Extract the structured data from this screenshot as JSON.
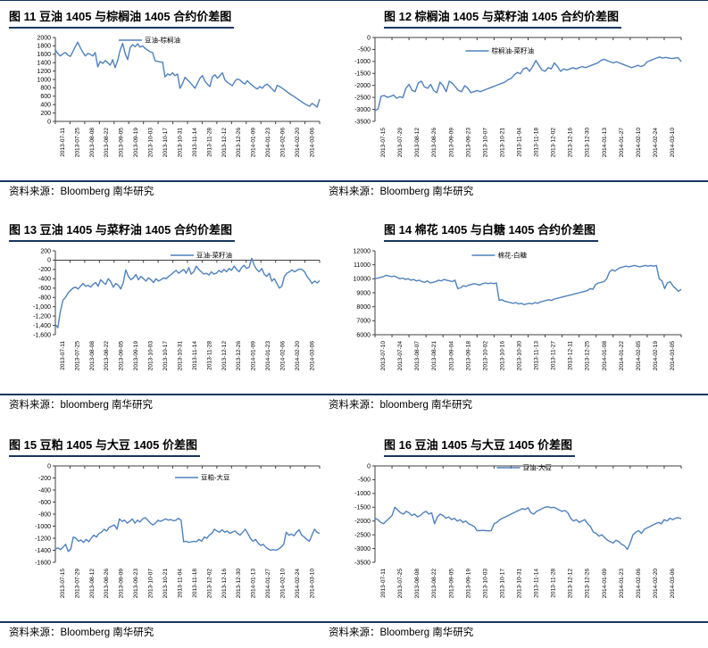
{
  "colors": {
    "line": "#4f81bd",
    "rule": "#17375e",
    "axis": "#404040",
    "text": "#000000"
  },
  "figures": [
    {
      "title": "图 11 豆油 1405 与棕榈油 1405 合约价差图",
      "source": "资料来源：Bloomberg 南华研究"
    },
    {
      "title": "图 12 棕榈油 1405 与菜籽油 1405 合约价差图",
      "source": "资料来源：Bloomberg 南华研究"
    },
    {
      "title": "图 13 豆油 1405 与菜籽油 1405 合约价差图",
      "source": "资料来源：bloomberg 南华研究"
    },
    {
      "title": "图 14 棉花 1405 与白糖 1405 合约价差图",
      "source": "资料来源：bloomberg 南华研究"
    },
    {
      "title": "图 15 豆粕 1405 与大豆 1405 价差图",
      "source": "资料来源：Bloomberg 南华研究"
    },
    {
      "title": "图 16 豆油 1405 与大豆 1405 价差图",
      "source": "资料来源：Bloomberg 南华研究"
    }
  ],
  "chart_data": [
    {
      "type": "line",
      "title": "图 11 豆油 1405 与棕榈油 1405 合约价差图",
      "legend": "豆油-棕榈油",
      "legend_dx": -45,
      "legend_dy": 3,
      "ylim": [
        0,
        2000
      ],
      "yticks": [
        "2000",
        "1800",
        "1600",
        "1400",
        "1200",
        "1000",
        "800",
        "600",
        "400",
        "200",
        "0"
      ],
      "axis_cross": 0,
      "grid": false,
      "categories": [
        "2013-07-11",
        "2013-07-25",
        "2013-08-08",
        "2013-08-22",
        "2013-09-05",
        "2013-09-19",
        "2013-10-03",
        "2013-10-17",
        "2013-10-31",
        "2013-11-14",
        "2013-11-28",
        "2013-12-12",
        "2013-12-26",
        "2014-01-09",
        "2014-01-23",
        "2014-02-06",
        "2014-02-20",
        "2014-03-06"
      ],
      "values": [
        1700,
        1620,
        1560,
        1610,
        1640,
        1580,
        1550,
        1660,
        1780,
        1890,
        1760,
        1650,
        1560,
        1620,
        1600,
        1560,
        1640,
        1300,
        1430,
        1380,
        1450,
        1400,
        1340,
        1470,
        1280,
        1450,
        1700,
        1860,
        1620,
        1470,
        1760,
        1830,
        1780,
        1850,
        1770,
        1800,
        1740,
        1700,
        1660,
        1640,
        1450,
        1430,
        1420,
        1410,
        1060,
        1130,
        1100,
        1160,
        1090,
        1130,
        790,
        900,
        1050,
        990,
        930,
        860,
        790,
        910,
        1030,
        1090,
        960,
        890,
        830,
        1060,
        1110,
        1030,
        1090,
        1160,
        990,
        930,
        890,
        850,
        960,
        1010,
        990,
        930,
        890,
        970,
        910,
        860,
        810,
        770,
        830,
        790,
        860,
        890,
        830,
        770,
        710,
        860,
        830,
        790,
        750,
        700,
        660,
        620,
        580,
        540,
        500,
        460,
        420,
        390,
        360,
        430,
        390,
        340,
        530
      ]
    },
    {
      "type": "line",
      "title": "图 12 棕榈油 1405 与菜籽油 1405 合约价差图",
      "legend": "棕榈油-菜籽油",
      "legend_dx": -38,
      "legend_dy": 15,
      "ylim": [
        -3500,
        0
      ],
      "yticks": [
        "0",
        "-500",
        "-1000",
        "-1500",
        "-2000",
        "-2500",
        "-3000",
        "-3500"
      ],
      "axis_cross": 0,
      "grid": false,
      "categories": [
        "2013-07-15",
        "2013-07-29",
        "2013-08-12",
        "2013-08-26",
        "2013-09-09",
        "2013-09-23",
        "2013-10-07",
        "2013-10-21",
        "2013-11-04",
        "2013-11-18",
        "2013-12-02",
        "2013-12-16",
        "2013-12-30",
        "2014-01-13",
        "2014-01-27",
        "2014-02-10",
        "2014-02-24",
        "2014-03-10"
      ],
      "values": [
        -3050,
        -2980,
        -2450,
        -2420,
        -2500,
        -2460,
        -2400,
        -2540,
        -2470,
        -2510,
        -2120,
        -1960,
        -2210,
        -2260,
        -1900,
        -1820,
        -2060,
        -2120,
        -1960,
        -2210,
        -2300,
        -1860,
        -2010,
        -2260,
        -1820,
        -1910,
        -2060,
        -2210,
        -2260,
        -2010,
        -2110,
        -2300,
        -2260,
        -2210,
        -2260,
        -2210,
        -2160,
        -2110,
        -2060,
        -2010,
        -1960,
        -1910,
        -1860,
        -1760,
        -1710,
        -1560,
        -1460,
        -1510,
        -1310,
        -1260,
        -1410,
        -1210,
        -960,
        -1160,
        -1360,
        -1410,
        -1260,
        -1310,
        -1060,
        -1210,
        -1410,
        -1310,
        -1360,
        -1310,
        -1260,
        -1310,
        -1260,
        -1210,
        -1260,
        -1210,
        -1160,
        -1110,
        -1060,
        -960,
        -910,
        -960,
        -1010,
        -1060,
        -1010,
        -1060,
        -1110,
        -1160,
        -1210,
        -1260,
        -1210,
        -1160,
        -1210,
        -1160,
        -1010,
        -960,
        -910,
        -860,
        -810,
        -860,
        -830,
        -860,
        -880,
        -860,
        -840,
        -1010
      ]
    },
    {
      "type": "line",
      "title": "图 13 豆油 1405 与菜籽油 1405 合约价差图",
      "legend": "豆油-菜籽油",
      "legend_dx": 13,
      "legend_dy": 5,
      "ylim": [
        -1600,
        200
      ],
      "yticks": [
        "200",
        "0",
        "-200",
        "-400",
        "-600",
        "-800",
        "-1,000",
        "-1,200",
        "-1,400",
        "-1,600"
      ],
      "axis_cross": 0,
      "grid": false,
      "categories": [
        "2013-07-11",
        "2013-07-25",
        "2013-08-08",
        "2013-08-22",
        "2013-09-05",
        "2013-09-19",
        "2013-10-03",
        "2013-10-17",
        "2013-10-31",
        "2013-11-14",
        "2013-11-28",
        "2013-12-12",
        "2013-12-26",
        "2014-01-09",
        "2014-01-23",
        "2014-02-06",
        "2014-02-20",
        "2014-03-06"
      ],
      "values": [
        -1380,
        -1450,
        -1100,
        -860,
        -800,
        -710,
        -650,
        -600,
        -580,
        -620,
        -560,
        -500,
        -560,
        -540,
        -580,
        -520,
        -480,
        -560,
        -420,
        -480,
        -520,
        -400,
        -460,
        -580,
        -500,
        -540,
        -620,
        -480,
        -210,
        -350,
        -420,
        -380,
        -310,
        -420,
        -350,
        -400,
        -450,
        -380,
        -420,
        -480,
        -400,
        -450,
        -420,
        -380,
        -400,
        -350,
        -310,
        -260,
        -220,
        -280,
        -240,
        -200,
        -280,
        -160,
        -300,
        -250,
        -130,
        -200,
        -250,
        -300,
        -280,
        -320,
        -250,
        -300,
        -280,
        -220,
        -260,
        -200,
        -250,
        -180,
        -220,
        -130,
        -200,
        -250,
        -160,
        -110,
        -180,
        -150,
        40,
        -110,
        -200,
        -250,
        -180,
        -300,
        -350,
        -280,
        -450,
        -400,
        -500,
        -600,
        -560,
        -350,
        -280,
        -250,
        -210,
        -250,
        -220,
        -190,
        -200,
        -250,
        -350,
        -420,
        -500,
        -450,
        -490,
        -440
      ]
    },
    {
      "type": "line",
      "title": "图 14 棉花 1405 与白糖 1405 合约价差图",
      "legend": "棉花-白糖",
      "legend_dx": -31,
      "legend_dy": 5,
      "ylim": [
        6000,
        12000
      ],
      "yticks": [
        "12000",
        "11000",
        "10000",
        "9000",
        "8000",
        "7000",
        "6000"
      ],
      "axis_cross": 6000,
      "grid": false,
      "categories": [
        "2013-07-10",
        "2013-07-24",
        "2013-08-07",
        "2013-08-21",
        "2013-09-04",
        "2013-09-18",
        "2013-10-02",
        "2013-10-16",
        "2013-10-30",
        "2013-11-13",
        "2013-11-27",
        "2013-12-11",
        "2013-12-25",
        "2014-01-08",
        "2014-01-22",
        "2014-02-05",
        "2014-02-19",
        "2014-03-05"
      ],
      "values": [
        10000,
        10050,
        10100,
        10150,
        10250,
        10200,
        10150,
        10200,
        10100,
        10000,
        10050,
        9950,
        10000,
        9900,
        9950,
        9850,
        9900,
        9800,
        9750,
        9850,
        9700,
        9750,
        9800,
        9900,
        9850,
        9950,
        9900,
        9850,
        9800,
        9900,
        9300,
        9350,
        9500,
        9450,
        9550,
        9600,
        9650,
        9600,
        9550,
        9650,
        9700,
        9650,
        9700,
        9650,
        9700,
        8450,
        8500,
        8400,
        8350,
        8300,
        8250,
        8300,
        8200,
        8250,
        8150,
        8200,
        8250,
        8200,
        8300,
        8250,
        8350,
        8400,
        8450,
        8500,
        8450,
        8550,
        8600,
        8650,
        8700,
        8750,
        8800,
        8850,
        8900,
        8950,
        9000,
        9050,
        9100,
        9150,
        9300,
        9250,
        9600,
        9700,
        9750,
        9800,
        10000,
        10500,
        10650,
        10550,
        10700,
        10800,
        10850,
        10900,
        10850,
        10900,
        10950,
        10900,
        10850,
        10900,
        10950,
        10900,
        10950,
        10900,
        10950,
        10000,
        9850,
        9300,
        9700,
        9800,
        9500,
        9300,
        9100,
        9250
      ]
    },
    {
      "type": "line",
      "title": "图 15 豆粕 1405 与大豆 1405 价差图",
      "legend": "豆粕-大豆",
      "legend_dx": 18,
      "legend_dy": 13,
      "ylim": [
        -1600,
        0
      ],
      "yticks": [
        "0",
        "-200",
        "-400",
        "-600",
        "-800",
        "-1000",
        "-1200",
        "-1400",
        "-1600"
      ],
      "axis_cross": 0,
      "grid": false,
      "categories": [
        "2013-07-15",
        "2013-07-29",
        "2013-08-12",
        "2013-08-26",
        "2013-09-09",
        "2013-09-23",
        "2013-10-07",
        "2013-10-21",
        "2013-11-04",
        "2013-11-18",
        "2013-12-02",
        "2013-12-16",
        "2013-12-30",
        "2014-01-13",
        "2014-01-27",
        "2014-02-10",
        "2014-02-24",
        "2014-03-10"
      ],
      "values": [
        -1380,
        -1360,
        -1390,
        -1350,
        -1300,
        -1420,
        -1380,
        -1180,
        -1200,
        -1250,
        -1230,
        -1270,
        -1220,
        -1260,
        -1200,
        -1150,
        -1180,
        -1120,
        -1100,
        -1050,
        -1080,
        -1020,
        -1000,
        -980,
        -1050,
        -880,
        -920,
        -900,
        -950,
        -920,
        -880,
        -950,
        -900,
        -930,
        -880,
        -860,
        -900,
        -950,
        -980,
        -950,
        -900,
        -920,
        -900,
        -880,
        -900,
        -890,
        -910,
        -900,
        -870,
        -900,
        -1260,
        -1250,
        -1270,
        -1260,
        -1250,
        -1260,
        -1220,
        -1250,
        -1180,
        -1200,
        -1150,
        -1120,
        -1050,
        -1080,
        -1100,
        -1060,
        -1100,
        -1080,
        -1120,
        -1100,
        -1080,
        -1120,
        -1150,
        -1100,
        -1050,
        -1120,
        -1200,
        -1250,
        -1220,
        -1280,
        -1320,
        -1300,
        -1350,
        -1380,
        -1400,
        -1390,
        -1400,
        -1380,
        -1350,
        -1300,
        -1100,
        -1150,
        -1130,
        -1160,
        -1100,
        -1060,
        -1150,
        -1180,
        -1220,
        -1250,
        -1150,
        -1050,
        -1100,
        -1120
      ]
    },
    {
      "type": "line",
      "title": "图 16 豆油 1405 与大豆 1405 价差图",
      "legend": "豆油-大豆",
      "legend_dx": -3,
      "legend_dy": 2,
      "ylim": [
        -3500,
        0
      ],
      "yticks": [
        "0",
        "-500",
        "-1000",
        "-1500",
        "-2000",
        "-2500",
        "-3000",
        "-3500"
      ],
      "axis_cross": 0,
      "grid": false,
      "categories": [
        "2013-07-11",
        "2013-07-25",
        "2013-08-08",
        "2013-08-22",
        "2013-09-05",
        "2013-09-19",
        "2013-10-03",
        "2013-10-17",
        "2013-10-31",
        "2013-11-14",
        "2013-11-28",
        "2013-12-12",
        "2013-12-26",
        "2014-01-09",
        "2014-01-23",
        "2014-02-06",
        "2014-02-20",
        "2014-03-06"
      ],
      "values": [
        -1900,
        -1950,
        -2050,
        -2100,
        -2000,
        -1900,
        -1800,
        -1500,
        -1600,
        -1700,
        -1750,
        -1650,
        -1700,
        -1800,
        -1750,
        -1850,
        -1800,
        -1700,
        -1650,
        -1750,
        -1700,
        -2100,
        -1850,
        -1750,
        -1800,
        -1900,
        -1850,
        -1950,
        -1900,
        -2000,
        -1950,
        -2050,
        -2000,
        -2100,
        -2150,
        -2200,
        -2350,
        -2350,
        -2340,
        -2350,
        -2360,
        -2350,
        -2100,
        -2050,
        -1950,
        -1900,
        -1850,
        -1800,
        -1750,
        -1700,
        -1650,
        -1600,
        -1550,
        -1580,
        -1520,
        -1700,
        -1750,
        -1650,
        -1600,
        -1550,
        -1500,
        -1480,
        -1520,
        -1500,
        -1550,
        -1600,
        -1650,
        -1620,
        -1700,
        -1900,
        -2000,
        -1950,
        -2050,
        -2000,
        -1950,
        -2100,
        -2200,
        -2400,
        -2450,
        -2550,
        -2500,
        -2600,
        -2700,
        -2750,
        -2800,
        -2700,
        -2750,
        -2850,
        -2900,
        -3030,
        -2800,
        -2500,
        -2400,
        -2350,
        -2450,
        -2300,
        -2250,
        -2200,
        -2150,
        -2100,
        -2050,
        -2100,
        -1950,
        -2000,
        -1900,
        -1950,
        -1900,
        -1880,
        -1920
      ]
    }
  ]
}
